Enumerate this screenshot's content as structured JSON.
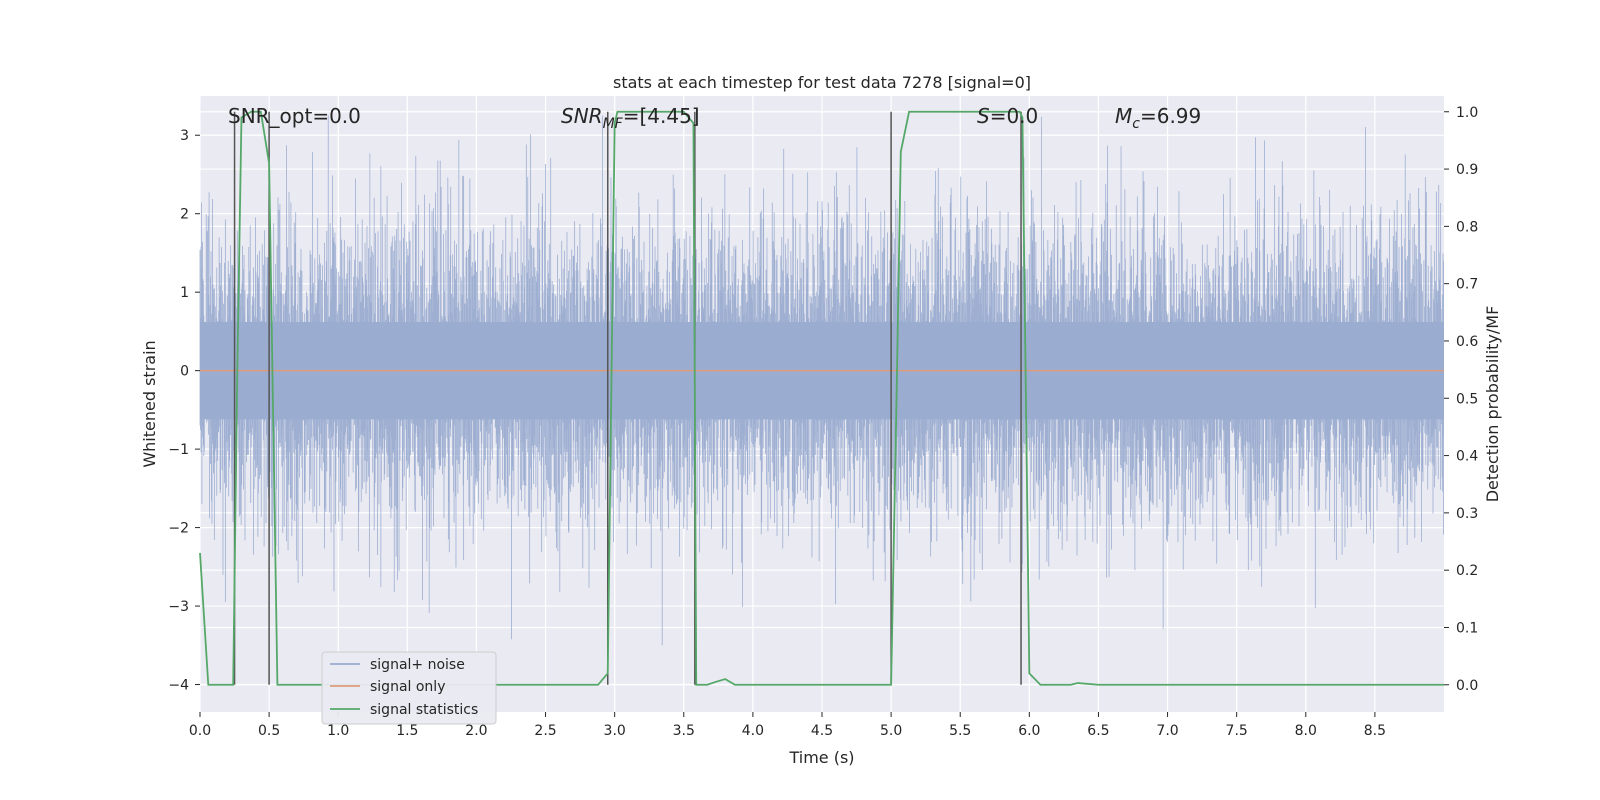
{
  "chart_data": {
    "type": "line",
    "title": "stats at each timestep for test data 7278 [signal=0]",
    "xlabel": "Time (s)",
    "ylabel": "Whitened strain",
    "ylabel_right": "Detection probability/MF",
    "xlim": [
      0.0,
      9.0
    ],
    "ylim": [
      -4.35,
      3.5
    ],
    "ylim_right": [
      -0.0475,
      1.0275
    ],
    "x_ticks": [
      0.0,
      0.5,
      1.0,
      1.5,
      2.0,
      2.5,
      3.0,
      3.5,
      4.0,
      4.5,
      5.0,
      5.5,
      6.0,
      6.5,
      7.0,
      7.5,
      8.0,
      8.5
    ],
    "x_tick_labels": [
      "0.0",
      "0.5",
      "1.0",
      "1.5",
      "2.0",
      "2.5",
      "3.0",
      "3.5",
      "4.0",
      "4.5",
      "5.0",
      "5.5",
      "6.0",
      "6.5",
      "7.0",
      "7.5",
      "8.0",
      "8.5"
    ],
    "y_ticks": [
      -4,
      -3,
      -2,
      -1,
      0,
      1,
      2,
      3
    ],
    "y_tick_labels": [
      "−4",
      "−3",
      "−2",
      "−1",
      "0",
      "1",
      "2",
      "3"
    ],
    "y_right_ticks": [
      0.0,
      0.1,
      0.2,
      0.3,
      0.4,
      0.5,
      0.6,
      0.7,
      0.8,
      0.9,
      1.0
    ],
    "y_right_tick_labels": [
      "0.0",
      "0.1",
      "0.2",
      "0.3",
      "0.4",
      "0.5",
      "0.6",
      "0.7",
      "0.8",
      "0.9",
      "1.0"
    ],
    "grid": true,
    "legend_position": "lower-left",
    "series": [
      {
        "name": "signal+ noise",
        "color": "#9aacd0",
        "description": "noise-dominated whitened strain, roughly within −2.7 to 2.9",
        "approx_range": [
          -3.9,
          3.25
        ]
      },
      {
        "name": "signal only",
        "color": "#dd9c7c",
        "x": [
          0.0,
          9.0
        ],
        "y": [
          0.0,
          0.0
        ]
      },
      {
        "name": "signal statistics",
        "color": "#55a868",
        "axis": "right",
        "x": [
          0.0,
          0.06,
          0.1,
          0.16,
          0.24,
          0.27,
          0.3,
          0.37,
          0.44,
          0.5,
          0.56,
          0.63,
          1.0,
          2.0,
          2.6,
          2.88,
          2.95,
          3.0,
          3.02,
          3.1,
          3.5,
          3.57,
          3.59,
          3.62,
          3.67,
          3.73,
          3.8,
          3.87,
          3.95,
          4.5,
          5.0,
          5.04,
          5.07,
          5.13,
          5.5,
          5.93,
          5.95,
          6.0,
          6.08,
          6.3,
          6.35,
          6.5,
          7.0,
          8.0,
          9.0
        ],
        "y": [
          0.23,
          0.0,
          0.0,
          0.0,
          0.0,
          0.55,
          0.99,
          1.0,
          1.0,
          0.91,
          0.0,
          0.0,
          0.0,
          0.0,
          0.0,
          0.0,
          0.02,
          0.98,
          1.0,
          1.0,
          1.0,
          0.98,
          0.0,
          0.0,
          0.0,
          0.005,
          0.01,
          0.0,
          0.0,
          0.0,
          0.0,
          0.51,
          0.93,
          1.0,
          1.0,
          1.0,
          0.99,
          0.02,
          0.0,
          0.0,
          0.003,
          0.0,
          0.0,
          0.0,
          0.0
        ]
      }
    ],
    "vlines": [
      {
        "x": 0.25,
        "y_right": [
          0.0,
          1.0
        ]
      },
      {
        "x": 0.5,
        "y_right": [
          0.0,
          1.0
        ]
      },
      {
        "x": 2.95,
        "y_right": [
          0.0,
          1.0
        ]
      },
      {
        "x": 3.58,
        "y_right": [
          0.0,
          1.0
        ]
      },
      {
        "x": 5.0,
        "y_right": [
          0.0,
          1.0
        ]
      },
      {
        "x": 5.94,
        "y_right": [
          0.0,
          1.0
        ]
      }
    ],
    "annotations": [
      {
        "id": "snr-opt",
        "text": "SNR_opt=0.0"
      },
      {
        "id": "snr-mf",
        "main": "SNR",
        "sub": "MF",
        "rest": "=[4.45]"
      },
      {
        "id": "s-val",
        "main": "S",
        "rest": "=0.0"
      },
      {
        "id": "mc-val",
        "main": "M",
        "sub": "c",
        "rest": "=6.99"
      }
    ]
  }
}
